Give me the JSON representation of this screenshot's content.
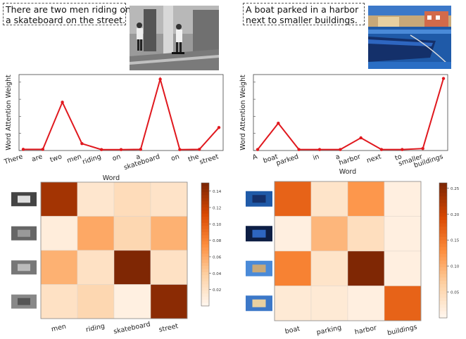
{
  "left": {
    "caption": "There are two men riding on a skateboard on the street.",
    "caption_lines": [
      "There are two men riding on",
      "a skateboard on the street."
    ],
    "photo": "grayscale-street-skateboard-photo",
    "line_chart": {
      "type": "line",
      "ylabel": "Word Attention Weight",
      "xlabel": "Word",
      "categories": [
        "There",
        "are",
        "two",
        "men",
        "riding",
        "on",
        "a",
        "skateboard",
        "on",
        "the",
        "street"
      ],
      "values": [
        0.005,
        0.005,
        0.21,
        0.03,
        0.004,
        0.004,
        0.005,
        0.31,
        0.004,
        0.005,
        0.1
      ],
      "ylim": [
        0,
        0.33
      ],
      "color": "#e0181e"
    },
    "heatmap": {
      "type": "heatmap",
      "columns": [
        "men",
        "riding",
        "skateboard",
        "street"
      ],
      "row_thumbs": [
        "person-crop",
        "ground-crop",
        "skateboard-crop",
        "street-crop"
      ],
      "matrix": [
        [
          0.135,
          0.015,
          0.025,
          0.018
        ],
        [
          0.008,
          0.06,
          0.03,
          0.055
        ],
        [
          0.055,
          0.02,
          0.15,
          0.02
        ],
        [
          0.02,
          0.03,
          0.005,
          0.145
        ]
      ],
      "vmax": 0.15,
      "colorbar_ticks": [
        "0.14",
        "0.12",
        "0.10",
        "0.08",
        "0.06",
        "0.04",
        "0.02"
      ]
    }
  },
  "right": {
    "caption": "A boat parked in a harbor next to smaller buildings.",
    "caption_lines": [
      "A boat parked in a harbor",
      "next to smaller buildings."
    ],
    "photo": "harbor-boat-photo",
    "line_chart": {
      "type": "line",
      "ylabel": "Word Attention Weight",
      "xlabel": "Word",
      "categories": [
        "A",
        "boat",
        "parked",
        "in",
        "a",
        "harbor",
        "next",
        "to",
        "smaller",
        "buildings"
      ],
      "values": [
        0.005,
        0.14,
        0.005,
        0.005,
        0.005,
        0.065,
        0.005,
        0.005,
        0.01,
        0.37
      ],
      "ylim": [
        0,
        0.39
      ],
      "color": "#e0181e"
    },
    "heatmap": {
      "type": "heatmap",
      "columns": [
        "boat",
        "parking",
        "harbor",
        "buildings"
      ],
      "row_thumbs": [
        "boat-crop",
        "dark-water-crop",
        "harbor-water-crop",
        "buildings-crop"
      ],
      "matrix": [
        [
          0.17,
          0.03,
          0.12,
          0.01
        ],
        [
          0.01,
          0.09,
          0.04,
          0.01
        ],
        [
          0.14,
          0.03,
          0.26,
          0.01
        ],
        [
          0.02,
          0.02,
          0.01,
          0.17
        ]
      ],
      "vmax": 0.26,
      "colorbar_ticks": [
        "0.25",
        "0.20",
        "0.15",
        "0.10",
        "0.05"
      ]
    }
  }
}
